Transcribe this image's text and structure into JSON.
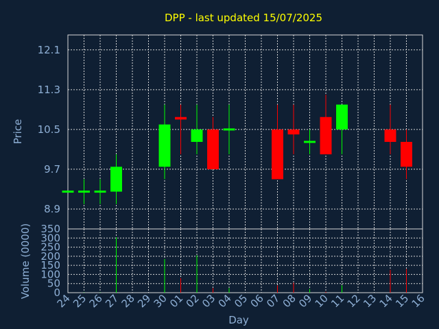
{
  "chart_data": [
    {
      "type": "candlestick",
      "title": "DPP - last updated 15/07/2025",
      "xlabel": "Day",
      "ylabel": "Price",
      "ylim": [
        8.5,
        12.4
      ],
      "yticks": [
        "8.9",
        "9.7",
        "10.5",
        "11.3",
        "12.1"
      ],
      "grid": true,
      "categories": [
        "24",
        "25",
        "26",
        "27",
        "28",
        "29",
        "30",
        "01",
        "02",
        "03",
        "04",
        "05",
        "06",
        "07",
        "08",
        "09",
        "10",
        "11",
        "12",
        "13",
        "14",
        "15",
        "16"
      ],
      "candles": [
        {
          "day": "24",
          "open": 9.25,
          "high": 9.25,
          "low": 9.25,
          "close": 9.25,
          "color": "green"
        },
        {
          "day": "25",
          "open": 9.25,
          "high": 9.5,
          "low": 9.0,
          "close": 9.25,
          "color": "green"
        },
        {
          "day": "26",
          "open": 9.25,
          "high": 9.5,
          "low": 9.0,
          "close": 9.25,
          "color": "green"
        },
        {
          "day": "27",
          "open": 9.25,
          "high": 10.0,
          "low": 9.0,
          "close": 9.75,
          "color": "green"
        },
        {
          "day": "30",
          "open": 9.75,
          "high": 11.0,
          "low": 9.5,
          "close": 10.6,
          "color": "green"
        },
        {
          "day": "01",
          "open": 10.75,
          "high": 11.0,
          "low": 10.0,
          "close": 10.7,
          "color": "red"
        },
        {
          "day": "02",
          "open": 10.25,
          "high": 11.0,
          "low": 10.0,
          "close": 10.5,
          "color": "green"
        },
        {
          "day": "03",
          "open": 10.5,
          "high": 10.75,
          "low": 9.7,
          "close": 9.7,
          "color": "red"
        },
        {
          "day": "04",
          "open": 10.5,
          "high": 11.0,
          "low": 10.0,
          "close": 10.5,
          "color": "green"
        },
        {
          "day": "07",
          "open": 10.5,
          "high": 11.0,
          "low": 9.5,
          "close": 9.5,
          "color": "red"
        },
        {
          "day": "08",
          "open": 10.5,
          "high": 11.0,
          "low": 10.0,
          "close": 10.4,
          "color": "red"
        },
        {
          "day": "09",
          "open": 10.25,
          "high": 10.5,
          "low": 10.0,
          "close": 10.25,
          "color": "green"
        },
        {
          "day": "10",
          "open": 10.75,
          "high": 11.2,
          "low": 10.0,
          "close": 10.0,
          "color": "red"
        },
        {
          "day": "11",
          "open": 10.5,
          "high": 11.0,
          "low": 10.0,
          "close": 11.0,
          "color": "green"
        },
        {
          "day": "14",
          "open": 10.5,
          "high": 11.0,
          "low": 10.0,
          "close": 10.25,
          "color": "red"
        },
        {
          "day": "15",
          "open": 10.25,
          "high": 10.5,
          "low": 9.5,
          "close": 9.75,
          "color": "red"
        }
      ]
    },
    {
      "type": "bar",
      "xlabel": "Day",
      "ylabel": "Volume (0000)",
      "ylim": [
        0,
        350
      ],
      "yticks": [
        "0",
        "50",
        "100",
        "150",
        "200",
        "250",
        "300",
        "350"
      ],
      "grid": true,
      "bars": [
        {
          "day": "24",
          "value": 0,
          "color": "green"
        },
        {
          "day": "25",
          "value": 2,
          "color": "green"
        },
        {
          "day": "26",
          "value": 2,
          "color": "green"
        },
        {
          "day": "27",
          "value": 305,
          "color": "green"
        },
        {
          "day": "30",
          "value": 185,
          "color": "green"
        },
        {
          "day": "01",
          "value": 80,
          "color": "red"
        },
        {
          "day": "02",
          "value": 205,
          "color": "green"
        },
        {
          "day": "03",
          "value": 25,
          "color": "red"
        },
        {
          "day": "04",
          "value": 25,
          "color": "green"
        },
        {
          "day": "07",
          "value": 40,
          "color": "red"
        },
        {
          "day": "08",
          "value": 55,
          "color": "red"
        },
        {
          "day": "09",
          "value": 20,
          "color": "green"
        },
        {
          "day": "10",
          "value": 5,
          "color": "red"
        },
        {
          "day": "11",
          "value": 40,
          "color": "green"
        },
        {
          "day": "14",
          "value": 125,
          "color": "red"
        },
        {
          "day": "15",
          "value": 130,
          "color": "red"
        }
      ]
    }
  ],
  "colors": {
    "background": "#0f1f33",
    "grid": "#d8d8d8",
    "title": "#ffff00",
    "axis_text": "#8fb0d6",
    "up": "#00ff00",
    "down": "#ff0000"
  }
}
